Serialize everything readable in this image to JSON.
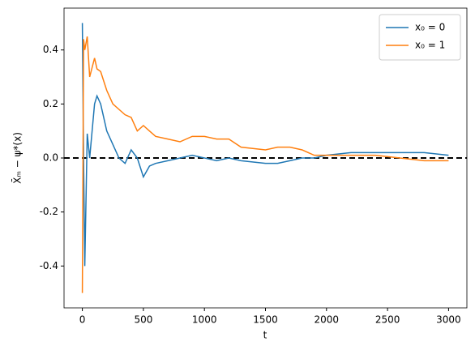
{
  "chart_data": {
    "type": "line",
    "x_label": "t",
    "y_label": "X̄ₘ − ψ*(x)",
    "x": [
      0,
      10,
      20,
      40,
      60,
      100,
      120,
      150,
      200,
      250,
      300,
      350,
      400,
      450,
      500,
      550,
      600,
      700,
      800,
      900,
      1000,
      1100,
      1200,
      1300,
      1500,
      1600,
      1700,
      1800,
      1900,
      2000,
      2200,
      2400,
      2600,
      2800,
      3000
    ],
    "series": [
      {
        "name": "x₀ = 0",
        "color": "#1f77b4",
        "values": [
          0.5,
          0.0,
          -0.4,
          0.09,
          0.0,
          0.2,
          0.23,
          0.2,
          0.1,
          0.05,
          0.0,
          -0.02,
          0.03,
          0.0,
          -0.07,
          -0.03,
          -0.02,
          -0.01,
          0.0,
          0.01,
          0.0,
          -0.01,
          0.0,
          -0.01,
          -0.02,
          -0.02,
          -0.01,
          0.0,
          0.0,
          0.01,
          0.02,
          0.02,
          0.02,
          0.02,
          0.01
        ]
      },
      {
        "name": "x₀ = 1",
        "color": "#ff7f0e",
        "values": [
          -0.5,
          0.44,
          0.4,
          0.45,
          0.3,
          0.37,
          0.33,
          0.32,
          0.25,
          0.2,
          0.18,
          0.16,
          0.15,
          0.1,
          0.12,
          0.1,
          0.08,
          0.07,
          0.06,
          0.08,
          0.08,
          0.07,
          0.07,
          0.04,
          0.03,
          0.04,
          0.04,
          0.03,
          0.01,
          0.01,
          0.01,
          0.01,
          0.0,
          -0.01,
          -0.01
        ]
      }
    ],
    "hline": 0,
    "xlim": [
      -150,
      3150
    ],
    "ylim": [
      -0.555,
      0.555
    ],
    "xticks": [
      0,
      500,
      1000,
      1500,
      2000,
      2500,
      3000
    ],
    "yticks": [
      -0.4,
      -0.2,
      {
        "value": 0,
        "label": "0.0"
      },
      0.2,
      0.4
    ],
    "legend": "upper right"
  }
}
